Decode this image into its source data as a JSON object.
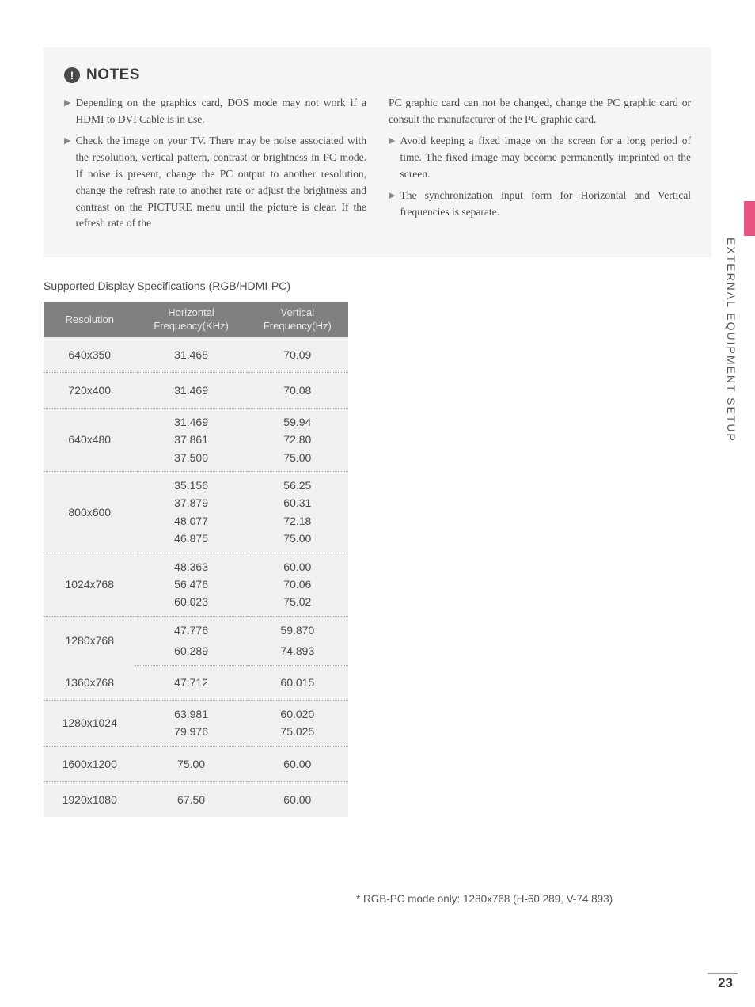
{
  "side_label": "EXTERNAL EQUIPMENT SETUP",
  "page_number": "23",
  "notes": {
    "title": "NOTES",
    "icon": "!",
    "left_items": [
      "Depending on the graphics card, DOS mode may not work if a HDMI to DVI Cable is in use.",
      "Check the image on your TV. There may be noise associated with the resolution, vertical pattern, contrast or brightness in PC mode. If noise is present, change the PC output to another resolution, change the refresh rate to another rate or adjust the brightness and contrast on the PICTURE menu until the picture is clear. If the refresh rate of the"
    ],
    "right_continuation": "PC graphic card can not be changed, change the PC graphic card or consult the manufacturer of the PC graphic card.",
    "right_items": [
      "Avoid keeping a fixed image on the screen for a long period of time. The fixed image may become permanently imprinted on the screen.",
      "The synchronization input form for Horizontal and Vertical frequencies is separate."
    ]
  },
  "spec_section": {
    "title": "Supported Display Specifications (RGB/HDMI-PC)",
    "headers": {
      "resolution": "Resolution",
      "horizontal_label": "Horizontal",
      "horizontal_unit": "Frequency(KHz)",
      "vertical_label": "Vertical",
      "vertical_unit": "Frequency(Hz)"
    },
    "rows": [
      {
        "res": "640x350",
        "h": "31.468",
        "v": "70.09"
      },
      {
        "res": "720x400",
        "h": "31.469",
        "v": "70.08"
      },
      {
        "res": "640x480",
        "h": "31.469\n37.861\n37.500",
        "v": "59.94\n72.80\n75.00"
      },
      {
        "res": "800x600",
        "h": "35.156\n37.879\n48.077\n46.875",
        "v": "56.25\n60.31\n72.18\n75.00"
      },
      {
        "res": "1024x768",
        "h": "48.363\n56.476\n60.023",
        "v": "60.00\n70.06\n75.02"
      },
      {
        "res": "1280x768",
        "h": "47.776\n60.289",
        "v": "59.870\n74.893",
        "highlight_last": true
      },
      {
        "res": "1360x768",
        "h": "47.712",
        "v": "60.015"
      },
      {
        "res": "1280x1024",
        "h": "63.981\n79.976",
        "v": "60.020\n75.025"
      },
      {
        "res": "1600x1200",
        "h": "75.00",
        "v": "60.00"
      },
      {
        "res": "1920x1080",
        "h": "67.50",
        "v": "60.00"
      }
    ]
  },
  "footnote": "* RGB-PC mode only: 1280x768 (H-60.289, V-74.893)"
}
